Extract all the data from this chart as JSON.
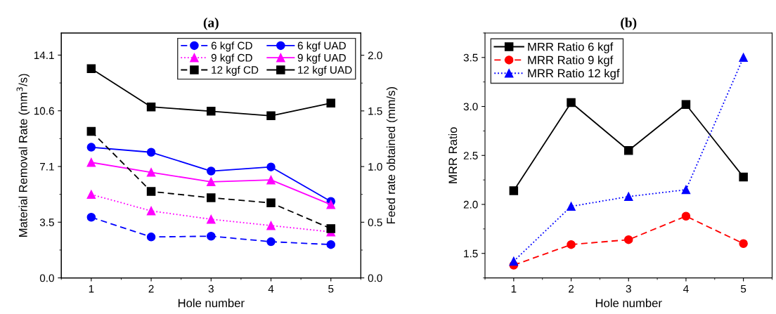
{
  "chart_data": [
    {
      "type": "line",
      "title": "(a)",
      "xlabel": "Hole number",
      "ylabel": "Material Removal Rate (mm$^{3}$/s)",
      "y2label": "Feed rate obtained (mm/s)",
      "x": [
        1,
        2,
        3,
        4,
        5
      ],
      "xlim": [
        0.5,
        5.5
      ],
      "xticks": [
        1,
        2,
        3,
        4,
        5
      ],
      "ylim": [
        0,
        15.5
      ],
      "yticks": [
        {
          "value": 0,
          "label": "0.0"
        },
        {
          "value": 3.525,
          "label": "3.5"
        },
        {
          "value": 7.05,
          "label": "7.1"
        },
        {
          "value": 10.575,
          "label": "10.6"
        },
        {
          "value": 14.1,
          "label": "14.1"
        }
      ],
      "y2lim": [
        0,
        2.2
      ],
      "y2ticks": [
        {
          "value": 0,
          "label": "0.0"
        },
        0.5,
        {
          "value": 1,
          "label": "1.0"
        },
        1.5,
        {
          "value": 2,
          "label": "2.0"
        }
      ],
      "legend": "top right",
      "grid": false,
      "series": [
        {
          "name": "6 kgf CD",
          "color": "#0000ff",
          "marker": "circle",
          "line_style": "dashed",
          "values": [
            3.84,
            2.59,
            2.64,
            2.29,
            2.11
          ]
        },
        {
          "name": "6 kgf UAD",
          "color": "#0000ff",
          "marker": "circle",
          "line_style": "solid",
          "values": [
            8.27,
            7.95,
            6.76,
            7.02,
            4.84
          ]
        },
        {
          "name": "9 kgf CD",
          "color": "#ff00ff",
          "marker": "triangle",
          "line_style": "dotted",
          "values": [
            5.28,
            4.24,
            3.71,
            3.31,
            2.91
          ]
        },
        {
          "name": "9 kgf UAD",
          "color": "#ff00ff",
          "marker": "triangle",
          "line_style": "solid",
          "values": [
            7.31,
            6.68,
            6.08,
            6.2,
            4.64
          ]
        },
        {
          "name": "12 kgf CD",
          "color": "#000000",
          "marker": "square",
          "line_style": "dashed",
          "values": [
            9.27,
            5.47,
            5.07,
            4.75,
            3.12
          ]
        },
        {
          "name": "12 kgf UAD",
          "color": "#000000",
          "marker": "square",
          "line_style": "solid",
          "values": [
            13.24,
            10.82,
            10.55,
            10.26,
            11.06
          ]
        }
      ]
    },
    {
      "type": "line",
      "title": "(b)",
      "xlabel": "Hole number",
      "ylabel": "MRR Ratio",
      "x": [
        1,
        2,
        3,
        4,
        5
      ],
      "xlim": [
        0.5,
        5.5
      ],
      "xticks": [
        1,
        2,
        3,
        4,
        5
      ],
      "ylim": [
        1.25,
        3.75
      ],
      "yticks": [
        1.5,
        {
          "value": 2,
          "label": "2.0"
        },
        2.5,
        {
          "value": 3,
          "label": "3.0"
        },
        3.5
      ],
      "legend": "top left",
      "grid": false,
      "series": [
        {
          "name": "MRR Ratio 6 kgf",
          "color": "#000000",
          "marker": "square",
          "line_style": "solid",
          "values": [
            2.14,
            3.04,
            2.55,
            3.02,
            2.28
          ]
        },
        {
          "name": "MRR Ratio 9 kgf",
          "color": "#ff0000",
          "marker": "circle",
          "line_style": "dashed",
          "values": [
            1.38,
            1.59,
            1.64,
            1.88,
            1.6
          ]
        },
        {
          "name": "MRR Ratio 12 kgf",
          "color": "#0000ff",
          "marker": "triangle",
          "line_style": "dotted",
          "values": [
            1.42,
            1.98,
            2.08,
            2.15,
            3.5
          ]
        }
      ]
    }
  ]
}
